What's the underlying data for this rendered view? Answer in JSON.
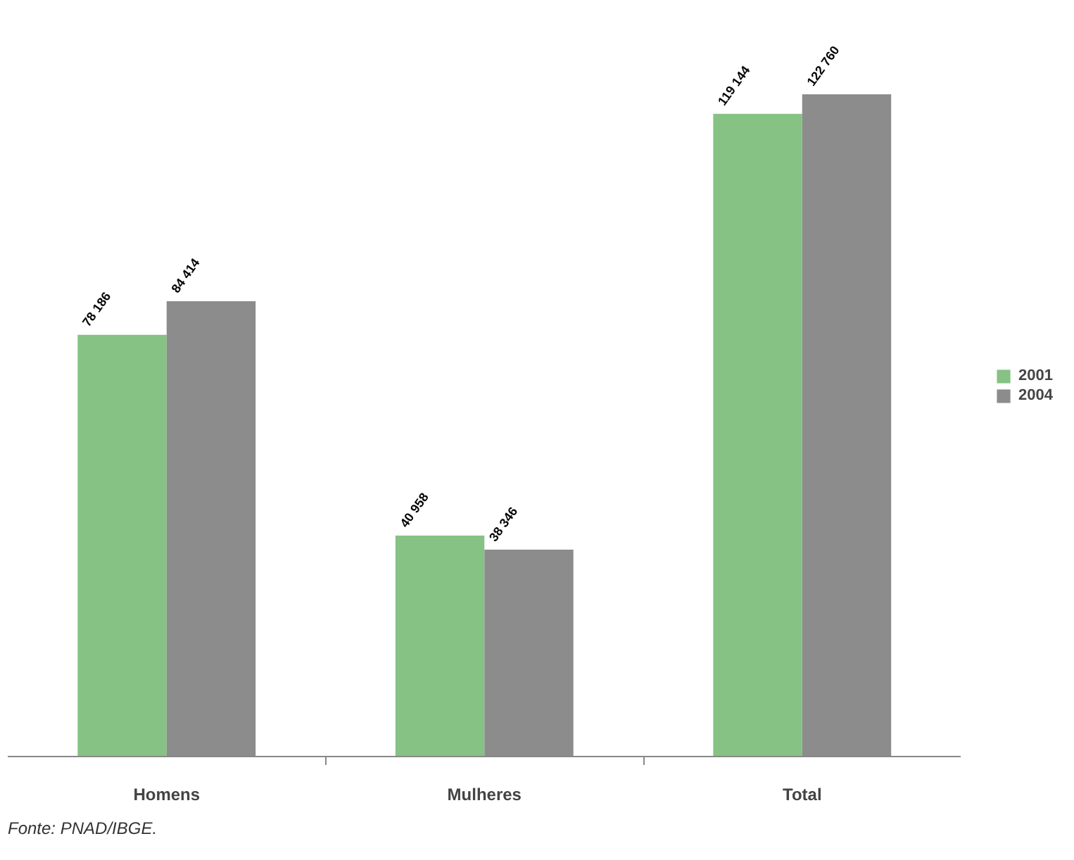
{
  "chart_data": {
    "type": "bar",
    "categories": [
      "Homens",
      "Mulheres",
      "Total"
    ],
    "series": [
      {
        "name": "2001",
        "color": "#86c283",
        "values": [
          78186,
          40958,
          119144
        ],
        "value_labels": [
          "78 186",
          "40 958",
          "119 144"
        ]
      },
      {
        "name": "2004",
        "color": "#8c8c8c",
        "values": [
          84414,
          38346,
          122760
        ],
        "value_labels": [
          "84 414",
          "38 346",
          "122 760"
        ]
      }
    ],
    "legend": "right",
    "grid": false,
    "annotations": [
      "Fonte: PNAD/IBGE."
    ]
  }
}
